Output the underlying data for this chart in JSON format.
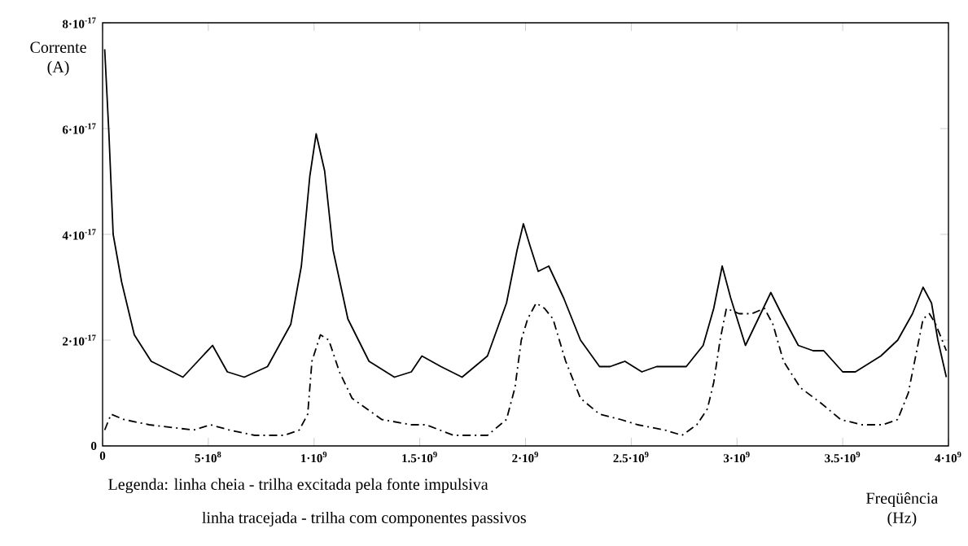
{
  "chart_data": {
    "type": "line",
    "xlabel": "Freqüência (Hz)",
    "ylabel": "Corrente (A)",
    "annotations": [
      "Legenda: linha cheia -  trilha excitada pela fonte impulsiva",
      "linha tracejada -  trilha com componentes passivos"
    ],
    "xlim": [
      0,
      4000000000.0
    ],
    "ylim": [
      0,
      8e-17
    ],
    "xticks": [
      0,
      {
        "value": 500000000.0,
        "label": "5·10$^{8}$"
      },
      {
        "value": 1000000000.0,
        "label": "1·10$^{9}$"
      },
      {
        "value": 1500000000.0,
        "label": "1.5·10$^{9}$"
      },
      {
        "value": 2000000000.0,
        "label": "2·10$^{9}$"
      },
      {
        "value": 2500000000.0,
        "label": "2.5·10$^{9}$"
      },
      {
        "value": 3000000000.0,
        "label": "3·10$^{9}$"
      },
      {
        "value": 3500000000.0,
        "label": "3.5·10$^{9}$"
      },
      {
        "value": 4000000000.0,
        "label": "4·10$^{9}$"
      }
    ],
    "yticks": [
      0,
      {
        "value": 2e-17,
        "label": "2·10$^{-17}$"
      },
      {
        "value": 4e-17,
        "label": "4·10$^{-17}$"
      },
      {
        "value": 6e-17,
        "label": "6·10$^{-17}$"
      },
      {
        "value": 8e-17,
        "label": "8·10$^{-17}$"
      }
    ],
    "series": [
      {
        "color": "#000000",
        "line_style": "solid",
        "x": [
          10000000.0,
          30000000.0,
          50000000.0,
          90000000.0,
          150000000.0,
          230000000.0,
          380000000.0,
          450000000.0,
          520000000.0,
          590000000.0,
          670000000.0,
          780000000.0,
          890000000.0,
          940000000.0,
          980000000.0,
          1010000000.0,
          1050000000.0,
          1090000000.0,
          1160000000.0,
          1260000000.0,
          1380000000.0,
          1460000000.0,
          1510000000.0,
          1600000000.0,
          1700000000.0,
          1820000000.0,
          1910000000.0,
          1960000000.0,
          1990000000.0,
          2020000000.0,
          2060000000.0,
          2110000000.0,
          2180000000.0,
          2260000000.0,
          2350000000.0,
          2400000000.0,
          2470000000.0,
          2550000000.0,
          2620000000.0,
          2720000000.0,
          2760000000.0,
          2840000000.0,
          2890000000.0,
          2930000000.0,
          2970000000.0,
          3040000000.0,
          3100000000.0,
          3160000000.0,
          3210000000.0,
          3290000000.0,
          3360000000.0,
          3410000000.0,
          3500000000.0,
          3560000000.0,
          3680000000.0,
          3760000000.0,
          3830000000.0,
          3880000000.0,
          3920000000.0,
          3950000000.0,
          3990000000.0
        ],
        "values": [
          7.5e-17,
          5.9e-17,
          4e-17,
          3.1e-17,
          2.1e-17,
          1.6e-17,
          1.3e-17,
          1.6e-17,
          1.9e-17,
          1.4e-17,
          1.3e-17,
          1.5e-17,
          2.3e-17,
          3.4e-17,
          5.1e-17,
          5.9e-17,
          5.2e-17,
          3.7e-17,
          2.4e-17,
          1.6e-17,
          1.3e-17,
          1.4e-17,
          1.7e-17,
          1.5e-17,
          1.3e-17,
          1.7e-17,
          2.7e-17,
          3.7e-17,
          4.2e-17,
          3.8e-17,
          3.3e-17,
          3.4e-17,
          2.8e-17,
          2e-17,
          1.5e-17,
          1.5e-17,
          1.6e-17,
          1.4e-17,
          1.5e-17,
          1.5e-17,
          1.5e-17,
          1.9e-17,
          2.6e-17,
          3.4e-17,
          2.8e-17,
          1.9e-17,
          2.4e-17,
          2.9e-17,
          2.5e-17,
          1.9e-17,
          1.8e-17,
          1.8e-17,
          1.4e-17,
          1.4e-17,
          1.7e-17,
          2e-17,
          2.5e-17,
          3e-17,
          2.7e-17,
          2e-17,
          1.3e-17
        ]
      },
      {
        "color": "#000000",
        "line_style": "dashed",
        "x": [
          10000000.0,
          40000000.0,
          100000000.0,
          220000000.0,
          430000000.0,
          510000000.0,
          600000000.0,
          720000000.0,
          860000000.0,
          930000000.0,
          970000000.0,
          990000000.0,
          1030000000.0,
          1070000000.0,
          1120000000.0,
          1180000000.0,
          1320000000.0,
          1460000000.0,
          1530000000.0,
          1660000000.0,
          1820000000.0,
          1910000000.0,
          1950000000.0,
          1980000000.0,
          2010000000.0,
          2050000000.0,
          2090000000.0,
          2130000000.0,
          2190000000.0,
          2260000000.0,
          2350000000.0,
          2450000000.0,
          2530000000.0,
          2660000000.0,
          2740000000.0,
          2810000000.0,
          2860000000.0,
          2890000000.0,
          2920000000.0,
          2950000000.0,
          3010000000.0,
          3070000000.0,
          3130000000.0,
          3170000000.0,
          3220000000.0,
          3300000000.0,
          3400000000.0,
          3490000000.0,
          3590000000.0,
          3690000000.0,
          3760000000.0,
          3810000000.0,
          3850000000.0,
          3880000000.0,
          3910000000.0,
          3940000000.0,
          3990000000.0
        ],
        "values": [
          3e-18,
          6e-18,
          5e-18,
          4e-18,
          3e-18,
          4e-18,
          3e-18,
          2e-18,
          2e-18,
          3e-18,
          6e-18,
          1.6e-17,
          2.1e-17,
          2e-17,
          1.4e-17,
          9e-18,
          5e-18,
          4e-18,
          4e-18,
          2e-18,
          2e-18,
          5e-18,
          1.1e-17,
          2e-17,
          2.4e-17,
          2.7e-17,
          2.6e-17,
          2.4e-17,
          1.6e-17,
          9e-18,
          6e-18,
          5e-18,
          4e-18,
          3e-18,
          2e-18,
          4e-18,
          7e-18,
          1.2e-17,
          2e-17,
          2.6e-17,
          2.5e-17,
          2.5e-17,
          2.6e-17,
          2.3e-17,
          1.6e-17,
          1.1e-17,
          8e-18,
          5e-18,
          4e-18,
          4e-18,
          5e-18,
          1e-17,
          1.8e-17,
          2.4e-17,
          2.5e-17,
          2.3e-17,
          1.8e-17
        ]
      }
    ]
  }
}
